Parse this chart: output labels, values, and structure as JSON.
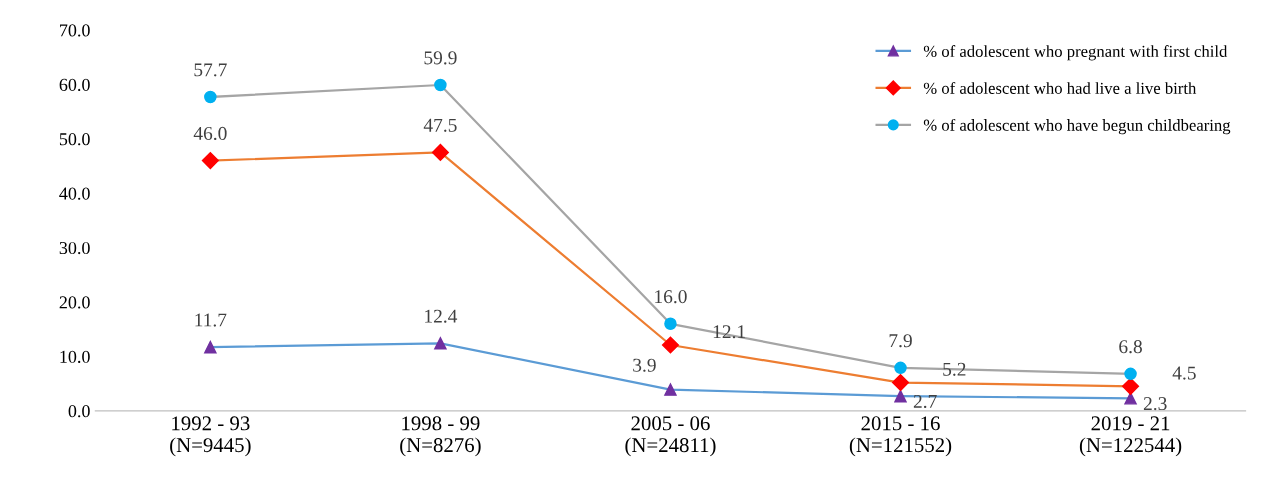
{
  "chart_data": {
    "type": "line",
    "categories": [
      "1992 - 93\n(N=9445)",
      "1998 - 99\n(N=8276)",
      "2005 - 06\n(N=24811)",
      "2015 - 16\n(N=121552)",
      "2019 - 21\n(N=122544)"
    ],
    "ylim": [
      0,
      70
    ],
    "yticks": [
      {
        "value": 0,
        "label": "0.0"
      },
      {
        "value": 10,
        "label": "10.0"
      },
      {
        "value": 20,
        "label": "20.0"
      },
      {
        "value": 30,
        "label": "30.0"
      },
      {
        "value": 40,
        "label": "40.0"
      },
      {
        "value": 50,
        "label": "50.0"
      },
      {
        "value": 60,
        "label": "60.0"
      },
      {
        "value": 70,
        "label": "70.0"
      }
    ],
    "grid": false,
    "legend": "top right",
    "line_style": "solid",
    "series": [
      {
        "name": "% of adolescent who pregnant with first child",
        "color": "#5b9bd5",
        "colors": [
          "#7030a0",
          "#7030a0",
          "#7030a0",
          "#7030a0",
          "#7030a0"
        ],
        "marker": "triangle",
        "values": [
          11.7,
          12.4,
          3.9,
          2.7,
          2.3
        ],
        "value_labels": [
          "11.7",
          "12.4",
          "3.9",
          "2.7",
          "2.3"
        ]
      },
      {
        "name": "% of adolescent who had live a live birth",
        "color": "#ed7d31",
        "colors": [
          "#ff0000",
          "#ff0000",
          "#ff0000",
          "#ff0000",
          "#ff0000"
        ],
        "marker": "diamond",
        "values": [
          46.0,
          47.5,
          12.1,
          5.2,
          4.5
        ],
        "value_labels": [
          "46.0",
          "47.5",
          "12.1",
          "5.2",
          "4.5"
        ]
      },
      {
        "name": "% of adolescent who have begun childbearing",
        "color": "#a5a5a5",
        "colors": [
          "#00b0f0",
          "#00b0f0",
          "#00b0f0",
          "#00b0f0",
          "#00b0f0"
        ],
        "marker": "circle",
        "values": [
          57.7,
          59.9,
          16.0,
          7.9,
          6.8
        ],
        "value_labels": [
          "57.7",
          "59.9",
          "16.0",
          "7.9",
          "6.8"
        ]
      }
    ]
  }
}
